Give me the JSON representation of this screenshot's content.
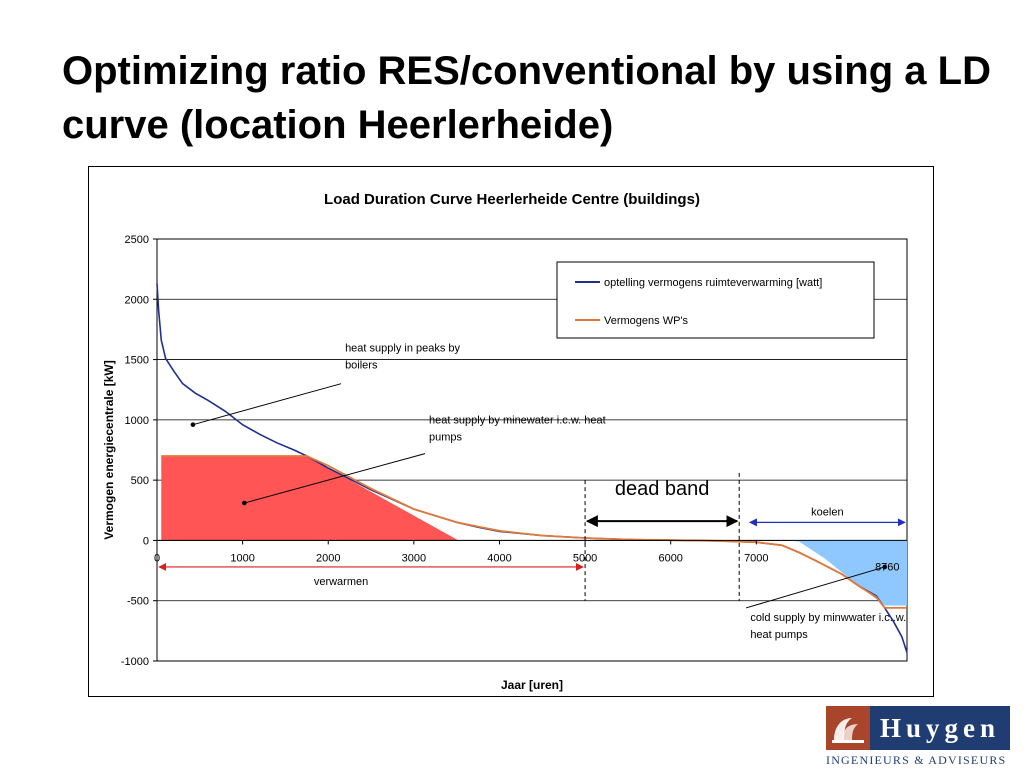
{
  "slide": {
    "title": "Optimizing ratio RES/conventional by using a LD curve (location Heerlerheide)"
  },
  "chart_data": {
    "type": "line",
    "title": "Load Duration Curve Heerlerheide Centre (buildings)",
    "xlabel": "Jaar [uren]",
    "ylabel": "Vermogen energiecentrale [kW]",
    "xlim": [
      0,
      8760
    ],
    "ylim": [
      -1000,
      2500
    ],
    "x_ticks": [
      0,
      1000,
      2000,
      3000,
      4000,
      5000,
      6000,
      7000
    ],
    "y_ticks": [
      2500,
      2000,
      1500,
      1000,
      500,
      0,
      -500,
      -1000
    ],
    "grid": "horizontal",
    "legend_position": "top-right",
    "series": [
      {
        "name": "optelling vermogens ruimteverwarming [watt]",
        "color": "#1f2f8f",
        "points": [
          [
            0,
            2130
          ],
          [
            20,
            1900
          ],
          [
            50,
            1660
          ],
          [
            100,
            1510
          ],
          [
            200,
            1400
          ],
          [
            300,
            1300
          ],
          [
            450,
            1220
          ],
          [
            600,
            1160
          ],
          [
            800,
            1070
          ],
          [
            1000,
            960
          ],
          [
            1200,
            880
          ],
          [
            1400,
            810
          ],
          [
            1600,
            750
          ],
          [
            1750,
            700
          ],
          [
            2000,
            600
          ],
          [
            2500,
            420
          ],
          [
            3000,
            260
          ],
          [
            3500,
            150
          ],
          [
            3750,
            110
          ],
          [
            4000,
            75
          ],
          [
            4500,
            40
          ],
          [
            5000,
            20
          ],
          [
            5500,
            8
          ],
          [
            6000,
            2
          ],
          [
            6500,
            -3
          ],
          [
            7000,
            -15
          ],
          [
            7300,
            -40
          ],
          [
            7500,
            -100
          ],
          [
            7700,
            -170
          ],
          [
            8000,
            -280
          ],
          [
            8200,
            -380
          ],
          [
            8400,
            -460
          ],
          [
            8500,
            -560
          ],
          [
            8600,
            -670
          ],
          [
            8700,
            -800
          ],
          [
            8760,
            -930
          ]
        ]
      },
      {
        "name": "Vermogens WP's",
        "color": "#e07a3a",
        "points": [
          [
            50,
            700
          ],
          [
            1750,
            700
          ],
          [
            2000,
            620
          ],
          [
            2500,
            430
          ],
          [
            3000,
            260
          ],
          [
            3500,
            150
          ],
          [
            3750,
            115
          ],
          [
            4000,
            80
          ],
          [
            4500,
            40
          ],
          [
            5000,
            20
          ],
          [
            5500,
            8
          ],
          [
            6000,
            2
          ],
          [
            6500,
            -3
          ],
          [
            7000,
            -15
          ],
          [
            7300,
            -40
          ],
          [
            7500,
            -100
          ],
          [
            7700,
            -170
          ],
          [
            8000,
            -280
          ],
          [
            8200,
            -380
          ],
          [
            8400,
            -470
          ],
          [
            8500,
            -560
          ],
          [
            8760,
            -560
          ]
        ]
      }
    ],
    "filled_regions": [
      {
        "color": "#ff5555",
        "points": [
          [
            50,
            700
          ],
          [
            1750,
            700
          ],
          [
            3520,
            0
          ],
          [
            50,
            0
          ]
        ]
      },
      {
        "color": "#8ec8ff",
        "points": [
          [
            7350,
            0
          ],
          [
            8760,
            0
          ],
          [
            8760,
            -540
          ],
          [
            8500,
            -540
          ],
          [
            8200,
            -380
          ],
          [
            7800,
            -150
          ],
          [
            7500,
            -10
          ]
        ]
      }
    ],
    "annotations": [
      {
        "text": "heat supply in peaks by boilers",
        "text_lines": [
          "heat supply in peaks by",
          "boilers"
        ],
        "target": [
          420,
          960
        ],
        "anchor": [
          2150,
          1300
        ]
      },
      {
        "text": "heat supply by minewater i.c.w. heat pumps",
        "text_lines": [
          "heat supply by minewater i.c.w. heat",
          "pumps"
        ],
        "target": [
          1020,
          310
        ],
        "anchor": [
          3130,
          720
        ]
      },
      {
        "text": "cold supply by minwwater i.c..w. heat pumps",
        "text_lines": [
          "cold supply by minwwater i.c..w.",
          "heat pumps"
        ],
        "target": [
          8500,
          -220
        ],
        "anchor": [
          6880,
          -560
        ]
      }
    ],
    "ranges": [
      {
        "label": "verwarmen",
        "from": 0,
        "to": 5000,
        "y": -220,
        "color": "#d42020",
        "style": "arrow"
      },
      {
        "label": "koelen",
        "from": 6900,
        "to": 8760,
        "y": 150,
        "color": "#2030c0",
        "style": "arrow"
      },
      {
        "label": "dead band",
        "from": 5000,
        "to": 6800,
        "y": 160,
        "color": "#000000",
        "style": "arrow-large"
      }
    ],
    "point_labels": [
      {
        "text": "8760",
        "x": 8530,
        "y": -100
      }
    ],
    "dashed_verticals": [
      {
        "x": 5000,
        "from": -500,
        "to": 500
      },
      {
        "x": 6800,
        "from": -500,
        "to": 560
      }
    ]
  },
  "logo": {
    "name": "Huygen",
    "subtitle": "INGENIEURS & ADVISEURS",
    "colors": {
      "mark": "#a8452a",
      "name_bg": "#1f3d73"
    }
  }
}
